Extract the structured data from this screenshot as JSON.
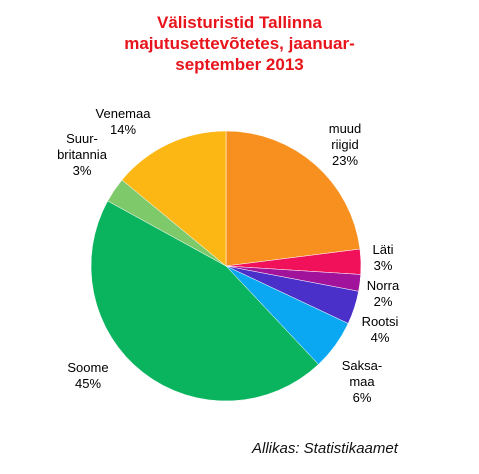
{
  "chart_data": {
    "type": "pie",
    "title_lines": [
      "Välisturistid Tallinna",
      "majutusettevõtetes, jaanuar-",
      "september 2013"
    ],
    "slices": [
      {
        "label_lines": [
          "muud",
          "riigid"
        ],
        "pct_text": "23%",
        "value": 23,
        "color": "#f7901e"
      },
      {
        "label_lines": [
          "Läti"
        ],
        "pct_text": "3%",
        "value": 3,
        "color": "#f0115a"
      },
      {
        "label_lines": [
          "Norra"
        ],
        "pct_text": "2%",
        "value": 2,
        "color": "#a2139b"
      },
      {
        "label_lines": [
          "Rootsi"
        ],
        "pct_text": "4%",
        "value": 4,
        "color": "#4b2fc9"
      },
      {
        "label_lines": [
          "Saksa-",
          "maa"
        ],
        "pct_text": "6%",
        "value": 6,
        "color": "#0aa8f2"
      },
      {
        "label_lines": [
          "Soome"
        ],
        "pct_text": "45%",
        "value": 45,
        "color": "#0ab35e"
      },
      {
        "label_lines": [
          "Suur-",
          "britannia"
        ],
        "pct_text": "3%",
        "value": 3,
        "color": "#7ec96a"
      },
      {
        "label_lines": [
          "Venemaa"
        ],
        "pct_text": "14%",
        "value": 14,
        "color": "#fdb714"
      }
    ],
    "source": "Allikas: Statistikaamet"
  }
}
